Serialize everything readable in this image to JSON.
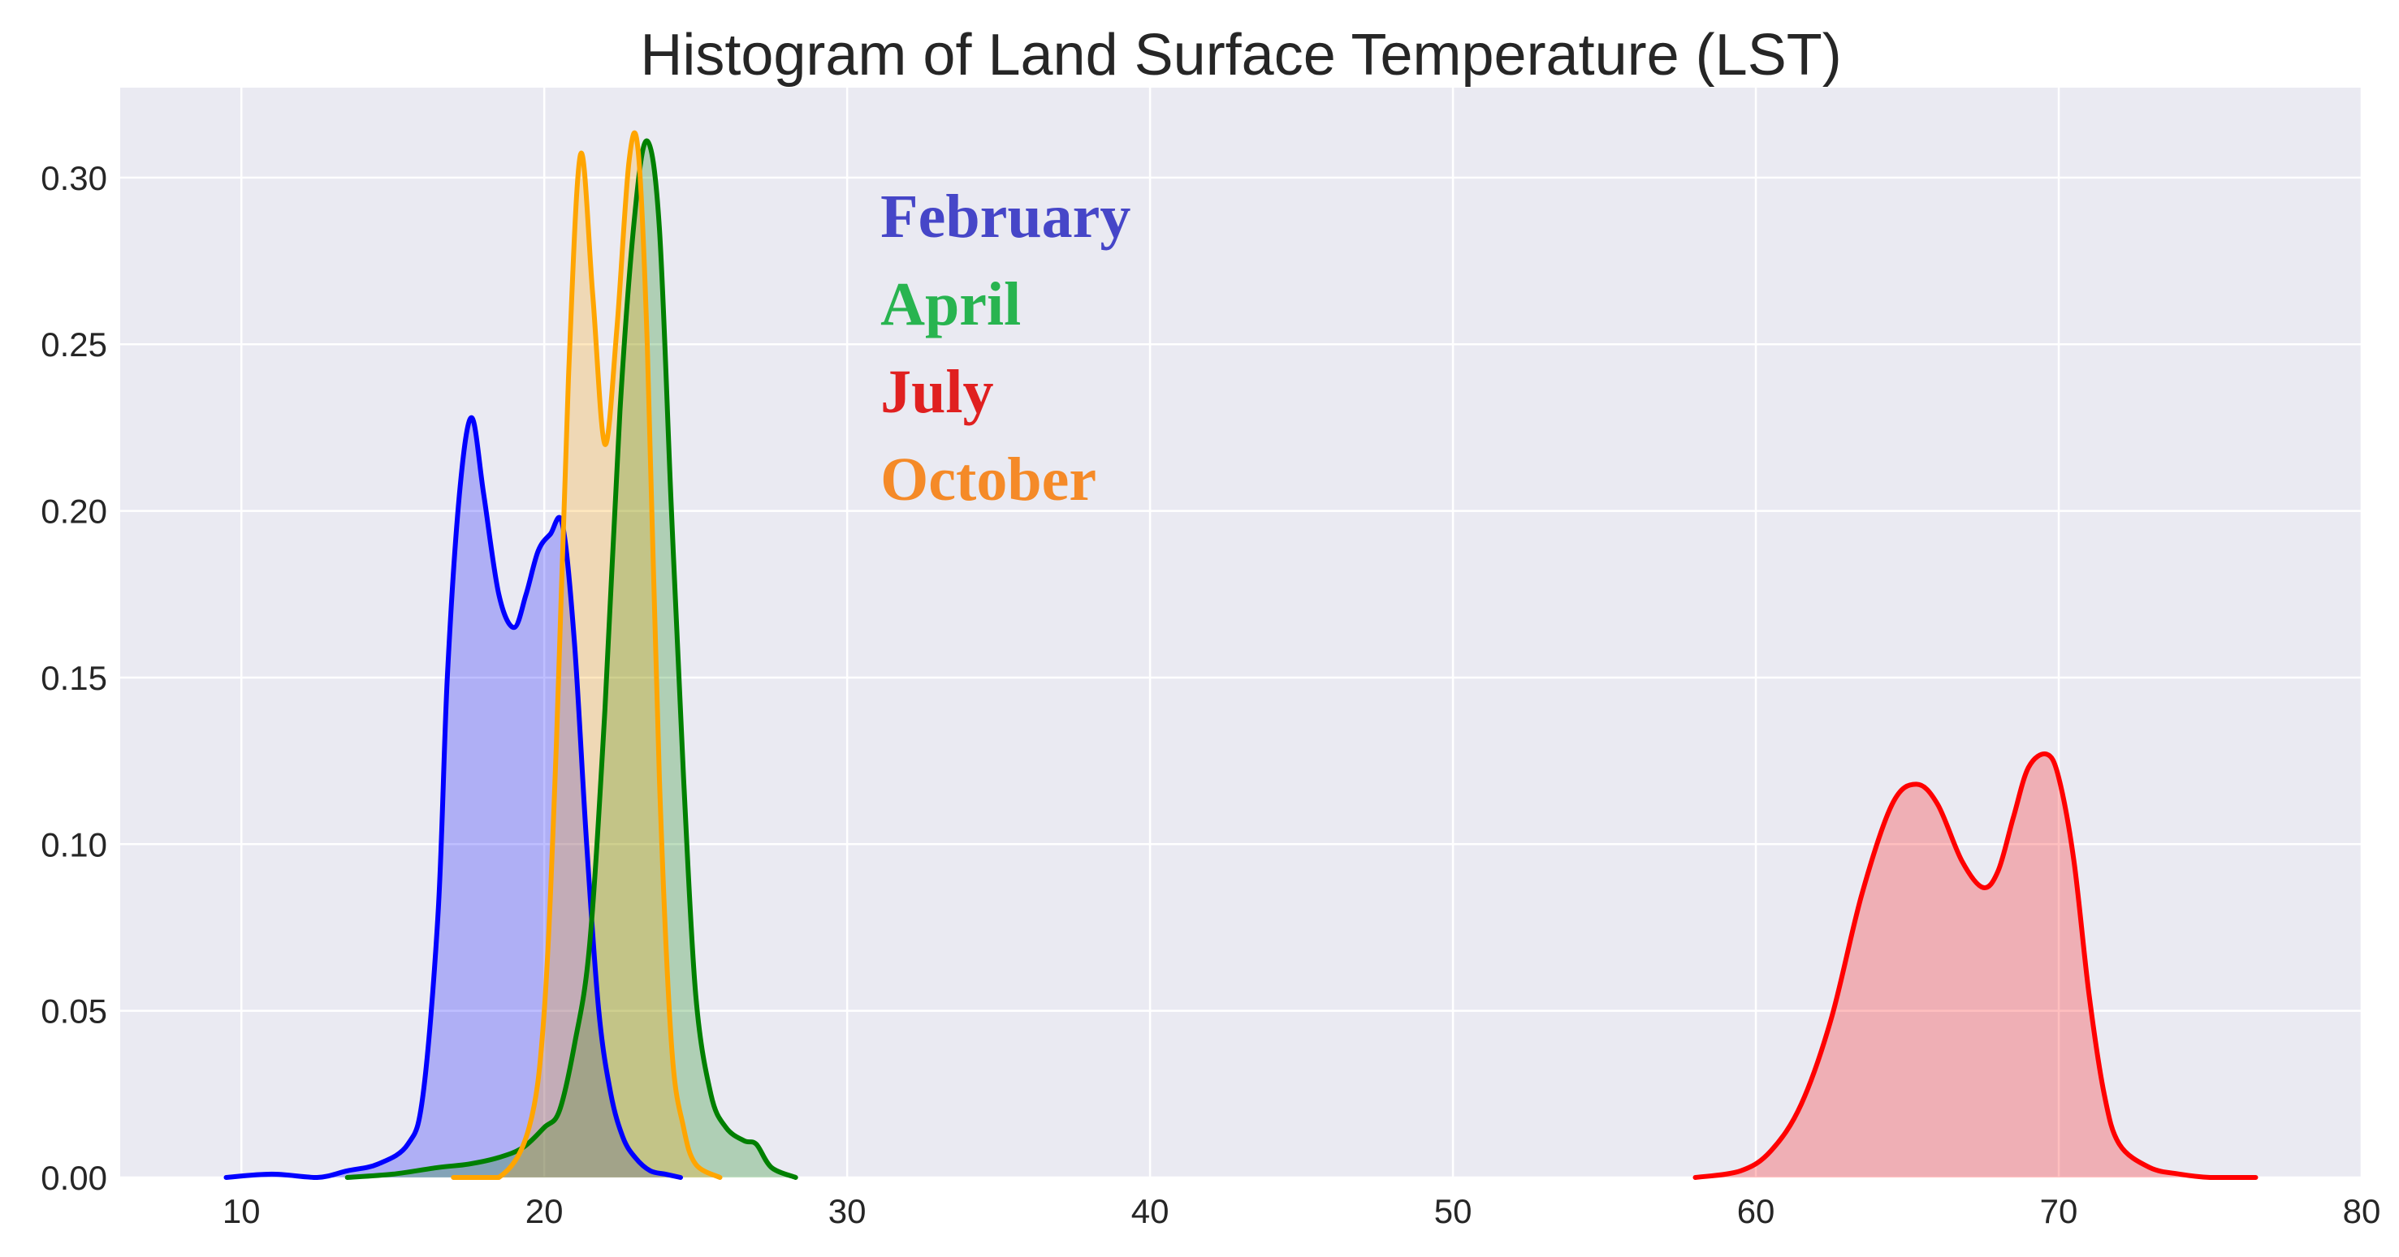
{
  "chart_data": {
    "type": "area",
    "title": "Histogram of Land Surface Temperature (LST)",
    "xlabel": "",
    "ylabel": "",
    "xlim": [
      6,
      80
    ],
    "ylim": [
      0,
      0.327
    ],
    "xticks": [
      10,
      20,
      30,
      40,
      50,
      60,
      70,
      80
    ],
    "yticks": [
      0.0,
      0.05,
      0.1,
      0.15,
      0.2,
      0.25,
      0.3
    ],
    "ytick_labels": [
      "0.00",
      "0.05",
      "0.10",
      "0.15",
      "0.20",
      "0.25",
      "0.30"
    ],
    "grid": true,
    "legend_placement": "upper-middle",
    "series": [
      {
        "name": "February",
        "line_color": "#0000ff",
        "fill_color": "#0000ff",
        "label_color": "#4646c8",
        "x": [
          9.5,
          11,
          12.5,
          13.5,
          14.5,
          15.5,
          16,
          16.5,
          16.8,
          17.2,
          17.6,
          18,
          18.5,
          19,
          19.4,
          19.8,
          20.2,
          20.6,
          21,
          21.4,
          21.8,
          22.2,
          22.6,
          23,
          23.5,
          24,
          24.5
        ],
        "y": [
          0.0,
          0.001,
          0.0,
          0.002,
          0.004,
          0.01,
          0.025,
          0.08,
          0.15,
          0.205,
          0.228,
          0.205,
          0.175,
          0.165,
          0.175,
          0.188,
          0.193,
          0.196,
          0.16,
          0.1,
          0.05,
          0.025,
          0.012,
          0.006,
          0.002,
          0.001,
          0.0
        ]
      },
      {
        "name": "April",
        "line_color": "#008000",
        "fill_color": "#008000",
        "label_color": "#28b450",
        "x": [
          13.5,
          15,
          16.5,
          17.5,
          18.5,
          19.3,
          20,
          20.5,
          21,
          21.5,
          22,
          22.5,
          23,
          23.4,
          23.8,
          24.2,
          24.6,
          25,
          25.5,
          26,
          26.6,
          27,
          27.5,
          28.3
        ],
        "y": [
          0.0,
          0.001,
          0.003,
          0.004,
          0.006,
          0.009,
          0.015,
          0.02,
          0.04,
          0.07,
          0.14,
          0.23,
          0.29,
          0.311,
          0.285,
          0.2,
          0.12,
          0.055,
          0.025,
          0.015,
          0.011,
          0.01,
          0.003,
          0.0
        ]
      },
      {
        "name": "October",
        "line_color": "#ffa500",
        "fill_color": "#ffa500",
        "label_color": "#f58a28",
        "x": [
          17,
          18.5,
          19.5,
          20,
          20.4,
          20.8,
          21.2,
          21.6,
          22,
          22.4,
          22.8,
          23.1,
          23.4,
          23.8,
          24.2,
          24.6,
          25,
          25.8
        ],
        "y": [
          0.0,
          0.0,
          0.015,
          0.05,
          0.13,
          0.24,
          0.307,
          0.265,
          0.22,
          0.255,
          0.305,
          0.308,
          0.25,
          0.12,
          0.04,
          0.015,
          0.004,
          0.0
        ]
      },
      {
        "name": "July",
        "line_color": "#ff0000",
        "fill_color": "#ff0000",
        "label_color": "#e02020",
        "x": [
          58,
          59.5,
          60.5,
          61.5,
          62.5,
          63.5,
          64.5,
          65.3,
          66,
          66.8,
          67.5,
          68,
          68.5,
          69,
          69.6,
          70,
          70.5,
          71,
          71.5,
          72,
          73,
          74,
          75,
          76.5
        ],
        "y": [
          0.0,
          0.002,
          0.008,
          0.022,
          0.048,
          0.085,
          0.112,
          0.118,
          0.112,
          0.095,
          0.087,
          0.092,
          0.108,
          0.123,
          0.127,
          0.12,
          0.095,
          0.055,
          0.025,
          0.01,
          0.003,
          0.001,
          0.0,
          0.0
        ]
      }
    ],
    "legend_order": [
      "February",
      "April",
      "July",
      "October"
    ]
  }
}
